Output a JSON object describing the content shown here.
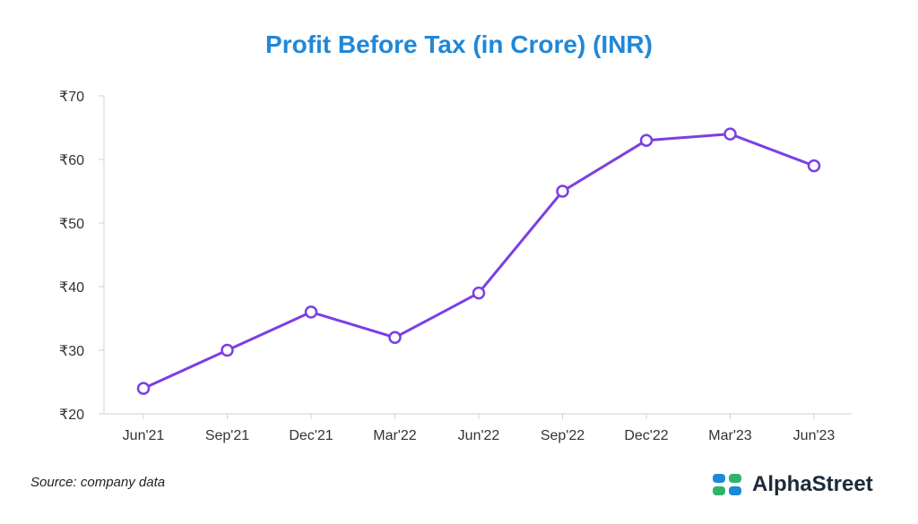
{
  "title": "Profit Before Tax (in Crore) (INR)",
  "source_note": "Source: company data",
  "brand": {
    "name": "AlphaStreet",
    "logo_icon": "alphastreet-logo-icon"
  },
  "colors": {
    "title": "#1f88d8",
    "line": "#7b3fe4",
    "point_fill": "#ffffff",
    "axis": "#d0d0d0",
    "logo_blue": "#1f88d8",
    "logo_green": "#2fb36b"
  },
  "chart_data": {
    "type": "line",
    "title": "Profit Before Tax (in Crore) (INR)",
    "categories": [
      "Jun'21",
      "Sep'21",
      "Dec'21",
      "Mar'22",
      "Jun'22",
      "Sep'22",
      "Dec'22",
      "Mar'23",
      "Jun'23"
    ],
    "series": [
      {
        "values": [
          24,
          30,
          36,
          32,
          39,
          55,
          63,
          64,
          59
        ]
      }
    ],
    "ylim": [
      20,
      70
    ],
    "yticks": [
      20,
      30,
      40,
      50,
      60,
      70
    ],
    "ytick_labels": [
      "₹20",
      "₹30",
      "₹40",
      "₹50",
      "₹60",
      "₹70"
    ],
    "xlabel": "",
    "ylabel": "",
    "grid": false,
    "legend": "none"
  }
}
